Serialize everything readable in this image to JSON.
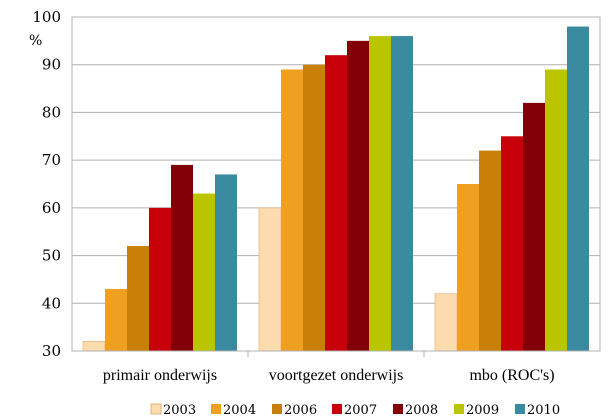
{
  "chart_data": {
    "type": "bar",
    "title": "",
    "xlabel": "",
    "ylabel": "",
    "unit_label": "%",
    "ylim": [
      30,
      100
    ],
    "yticks": [
      30,
      40,
      50,
      60,
      70,
      80,
      90,
      100
    ],
    "grid": true,
    "legend_position": "bottom",
    "categories": [
      "primair onderwijs",
      "voortgezet onderwijs",
      "mbo (ROC's)"
    ],
    "series": [
      {
        "name": "2003",
        "color": "#fddcb0",
        "values": [
          32,
          60,
          42
        ]
      },
      {
        "name": "2004",
        "color": "#f0a020",
        "values": [
          43,
          89,
          65
        ]
      },
      {
        "name": "2006",
        "color": "#c98008",
        "values": [
          52,
          90,
          72
        ]
      },
      {
        "name": "2007",
        "color": "#c8000a",
        "values": [
          60,
          92,
          75
        ]
      },
      {
        "name": "2008",
        "color": "#820008",
        "values": [
          69,
          95,
          82
        ]
      },
      {
        "name": "2009",
        "color": "#bcc400",
        "values": [
          63,
          96,
          89
        ]
      },
      {
        "name": "2010",
        "color": "#3a8aa0",
        "values": [
          67,
          96,
          98
        ]
      }
    ]
  }
}
